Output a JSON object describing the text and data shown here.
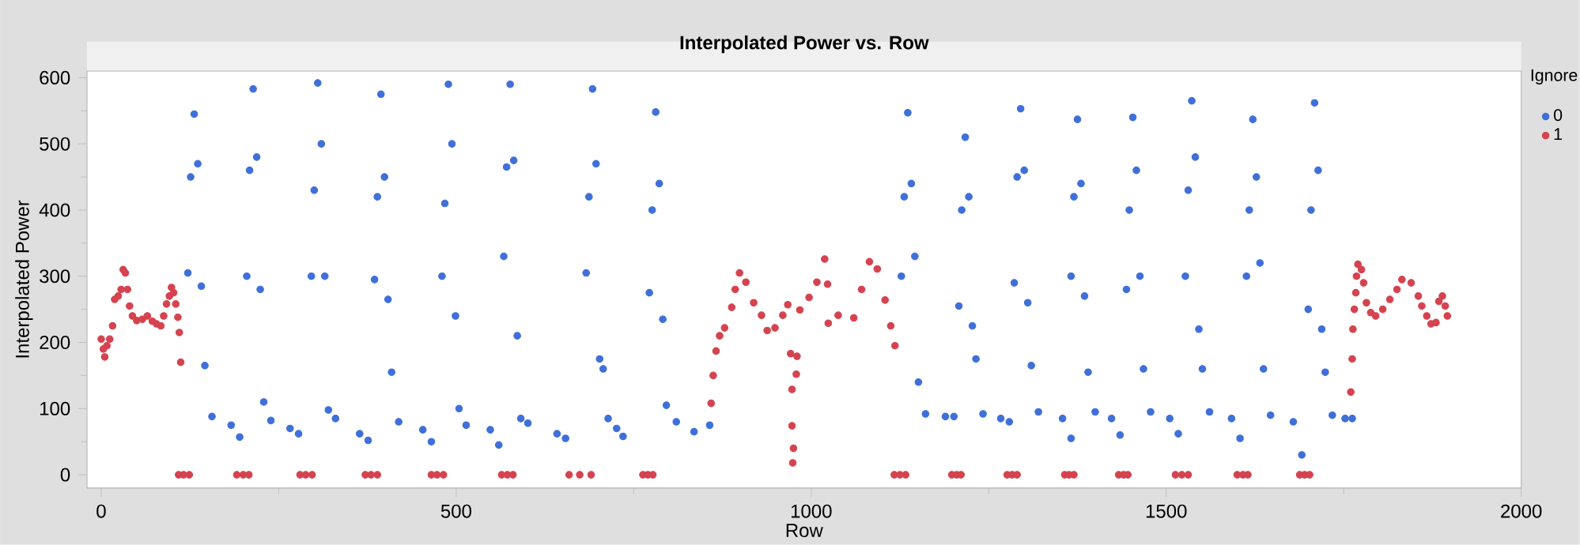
{
  "chart_data": {
    "type": "scatter",
    "title": "Interpolated Power vs. Row",
    "xlabel": "Row",
    "ylabel": "Interpolated Power",
    "legend_title": "Ignore",
    "legend": "top right",
    "marker": "circle",
    "xlim": [
      -20,
      2000
    ],
    "xticks": [
      0,
      500,
      1000,
      1500,
      2000
    ],
    "ylim": [
      -20,
      610
    ],
    "yticks": [
      0,
      100,
      200,
      300,
      400,
      500,
      600
    ],
    "series": [
      {
        "name": "0",
        "color": "#3f6fd8",
        "x": [
          122,
          126,
          131,
          136,
          141,
          146,
          156,
          183,
          195,
          205,
          209,
          214,
          219,
          224,
          229,
          239,
          266,
          278,
          296,
          300,
          305,
          310,
          315,
          320,
          330,
          364,
          376,
          385,
          389,
          394,
          399,
          404,
          409,
          419,
          453,
          465,
          480,
          484,
          489,
          494,
          499,
          504,
          514,
          548,
          560,
          567,
          571,
          576,
          581,
          586,
          591,
          601,
          642,
          654,
          683,
          687,
          692,
          697,
          702,
          707,
          714,
          726,
          735,
          772,
          776,
          781,
          786,
          791,
          796,
          810,
          835,
          857,
          1127,
          1131,
          1136,
          1141,
          1146,
          1151,
          1161,
          1189,
          1201,
          1208,
          1212,
          1217,
          1222,
          1227,
          1232,
          1242,
          1267,
          1279,
          1286,
          1290,
          1295,
          1300,
          1305,
          1310,
          1320,
          1354,
          1366,
          1366,
          1370,
          1375,
          1380,
          1385,
          1390,
          1400,
          1423,
          1435,
          1444,
          1448,
          1453,
          1458,
          1463,
          1468,
          1478,
          1505,
          1517,
          1527,
          1531,
          1536,
          1541,
          1546,
          1551,
          1561,
          1592,
          1604,
          1613,
          1617,
          1622,
          1627,
          1632,
          1637,
          1647,
          1679,
          1691,
          1700,
          1704,
          1709,
          1714,
          1719,
          1724,
          1734,
          1752,
          1762
        ],
        "values": [
          305,
          450,
          545,
          470,
          285,
          165,
          88,
          75,
          57,
          300,
          460,
          583,
          480,
          280,
          110,
          82,
          70,
          62,
          300,
          430,
          592,
          500,
          300,
          98,
          85,
          62,
          52,
          295,
          420,
          575,
          450,
          265,
          155,
          80,
          68,
          50,
          300,
          410,
          590,
          500,
          240,
          100,
          75,
          68,
          45,
          330,
          465,
          590,
          475,
          210,
          85,
          78,
          62,
          55,
          305,
          420,
          583,
          470,
          175,
          160,
          85,
          70,
          58,
          275,
          400,
          548,
          440,
          235,
          105,
          80,
          65,
          75,
          300,
          420,
          547,
          440,
          330,
          140,
          92,
          88,
          88,
          255,
          400,
          510,
          420,
          225,
          175,
          92,
          85,
          80,
          290,
          450,
          553,
          460,
          260,
          165,
          95,
          85,
          55,
          300,
          420,
          537,
          440,
          270,
          155,
          95,
          85,
          60,
          280,
          400,
          540,
          460,
          300,
          160,
          95,
          85,
          62,
          300,
          430,
          565,
          480,
          220,
          160,
          95,
          85,
          55,
          300,
          400,
          537,
          450,
          320,
          160,
          90,
          80,
          30,
          250,
          400,
          562,
          460,
          220,
          155,
          90,
          85,
          85
        ]
      },
      {
        "name": "1",
        "color": "#d4434f",
        "x": [
          0,
          3,
          5,
          8,
          12,
          16,
          19,
          24,
          28,
          31,
          34,
          37,
          40,
          44,
          50,
          58,
          65,
          72,
          78,
          84,
          88,
          92,
          96,
          99,
          102,
          105,
          108,
          110,
          112,
          109,
          116,
          124,
          191,
          200,
          208,
          280,
          288,
          297,
          372,
          380,
          389,
          465,
          473,
          482,
          564,
          572,
          580,
          659,
          674,
          690,
          763,
          770,
          777,
          859,
          862,
          866,
          871,
          878,
          888,
          893,
          899,
          908,
          919,
          930,
          938,
          949,
          960,
          967,
          971,
          973,
          973,
          974,
          975,
          979,
          980,
          984,
          997,
          1008,
          1019,
          1023,
          1024,
          1038,
          1060,
          1071,
          1082,
          1093,
          1104,
          1112,
          1118,
          1117,
          1125,
          1133,
          1198,
          1205,
          1211,
          1276,
          1283,
          1290,
          1357,
          1363,
          1370,
          1433,
          1440,
          1446,
          1513,
          1522,
          1531,
          1600,
          1608,
          1615,
          1688,
          1695,
          1702,
          1760,
          1762,
          1763,
          1765,
          1767,
          1768,
          1770,
          1775,
          1778,
          1782,
          1788,
          1795,
          1805,
          1815,
          1825,
          1832,
          1845,
          1855,
          1860,
          1867,
          1873,
          1880,
          1884,
          1889,
          1893,
          1896
        ],
        "values": [
          205,
          190,
          178,
          195,
          205,
          225,
          265,
          270,
          280,
          310,
          305,
          280,
          255,
          240,
          233,
          235,
          240,
          232,
          228,
          225,
          240,
          258,
          270,
          283,
          275,
          258,
          238,
          215,
          170,
          0,
          0,
          0,
          0,
          0,
          0,
          0,
          0,
          0,
          0,
          0,
          0,
          0,
          0,
          0,
          0,
          0,
          0,
          0,
          0,
          0,
          0,
          0,
          0,
          108,
          150,
          187,
          210,
          222,
          253,
          280,
          305,
          291,
          260,
          241,
          218,
          222,
          241,
          257,
          183,
          129,
          74,
          18,
          40,
          152,
          179,
          249,
          268,
          291,
          326,
          288,
          229,
          241,
          237,
          280,
          322,
          311,
          264,
          225,
          195,
          0,
          0,
          0,
          0,
          0,
          0,
          0,
          0,
          0,
          0,
          0,
          0,
          0,
          0,
          0,
          0,
          0,
          0,
          0,
          0,
          0,
          0,
          0,
          0,
          125,
          175,
          220,
          250,
          275,
          300,
          318,
          310,
          290,
          260,
          245,
          240,
          250,
          265,
          280,
          295,
          290,
          270,
          255,
          240,
          228,
          230,
          262,
          270,
          255,
          240
        ]
      }
    ]
  }
}
